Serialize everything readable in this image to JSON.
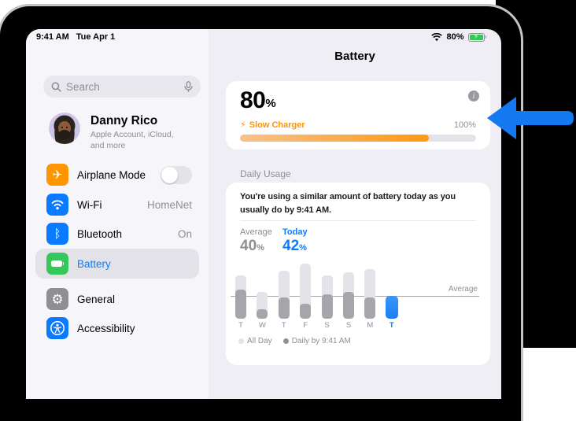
{
  "status_bar": {
    "time": "9:41 AM",
    "date": "Tue Apr 1",
    "battery_percent": "80%"
  },
  "sidebar": {
    "search": {
      "placeholder": "Search"
    },
    "profile": {
      "name": "Danny Rico",
      "subtitle": "Apple Account, iCloud, and more"
    },
    "items": [
      {
        "label": "Airplane Mode",
        "icon": "airplane-icon",
        "color": "#ff9500",
        "control": "toggle",
        "toggle_state": "off"
      },
      {
        "label": "Wi-Fi",
        "icon": "wifi-icon",
        "color": "#0a7aff",
        "value": "HomeNet"
      },
      {
        "label": "Bluetooth",
        "icon": "bluetooth-icon",
        "color": "#0a7aff",
        "value": "On"
      },
      {
        "label": "Battery",
        "icon": "battery-icon",
        "color": "#34c759",
        "selected": true
      },
      {
        "label": "General",
        "icon": "gear-icon",
        "color": "#8e8e93"
      },
      {
        "label": "Accessibility",
        "icon": "accessibility-icon",
        "color": "#0a7aff"
      }
    ]
  },
  "main": {
    "title": "Battery",
    "battery_card": {
      "percent": "80",
      "percent_sign": "%",
      "bolt": "⚡",
      "charging_label": "Slow Charger",
      "charge_limit": "100%",
      "progress_percent": 80,
      "info_label": "i"
    },
    "daily_usage": {
      "section_label": "Daily Usage",
      "summary": "You're using a similar amount of battery today as you usually do by 9:41 AM.",
      "average_label": "Average",
      "average_value": "40",
      "today_label": "Today",
      "today_value": "42",
      "value_sign": "%"
    }
  },
  "chart_data": {
    "type": "bar",
    "categories": [
      "T",
      "W",
      "T",
      "F",
      "S",
      "S",
      "M",
      "T"
    ],
    "series": [
      {
        "name": "All Day",
        "color": "#e4e3e9",
        "values": [
          79,
          49,
          87,
          100,
          79,
          84,
          90,
          null
        ]
      },
      {
        "name": "Daily by 9:41 AM",
        "color": "#a6a5ac",
        "values": [
          53,
          17,
          39,
          27,
          44,
          49,
          39,
          null
        ]
      },
      {
        "name": "Today",
        "color": "#2b87f5",
        "values": [
          null,
          null,
          null,
          null,
          null,
          null,
          null,
          42
        ]
      }
    ],
    "average_line": {
      "value": 40,
      "label": "Average"
    },
    "ylim": [
      0,
      100
    ],
    "unit": "%",
    "legend_position": "bottom",
    "grid": false
  },
  "colors": {
    "accent_blue": "#0a7cff",
    "charging_orange": "#ff9500",
    "battery_green": "#34c759",
    "annotation_arrow_blue": "#1478f0"
  }
}
